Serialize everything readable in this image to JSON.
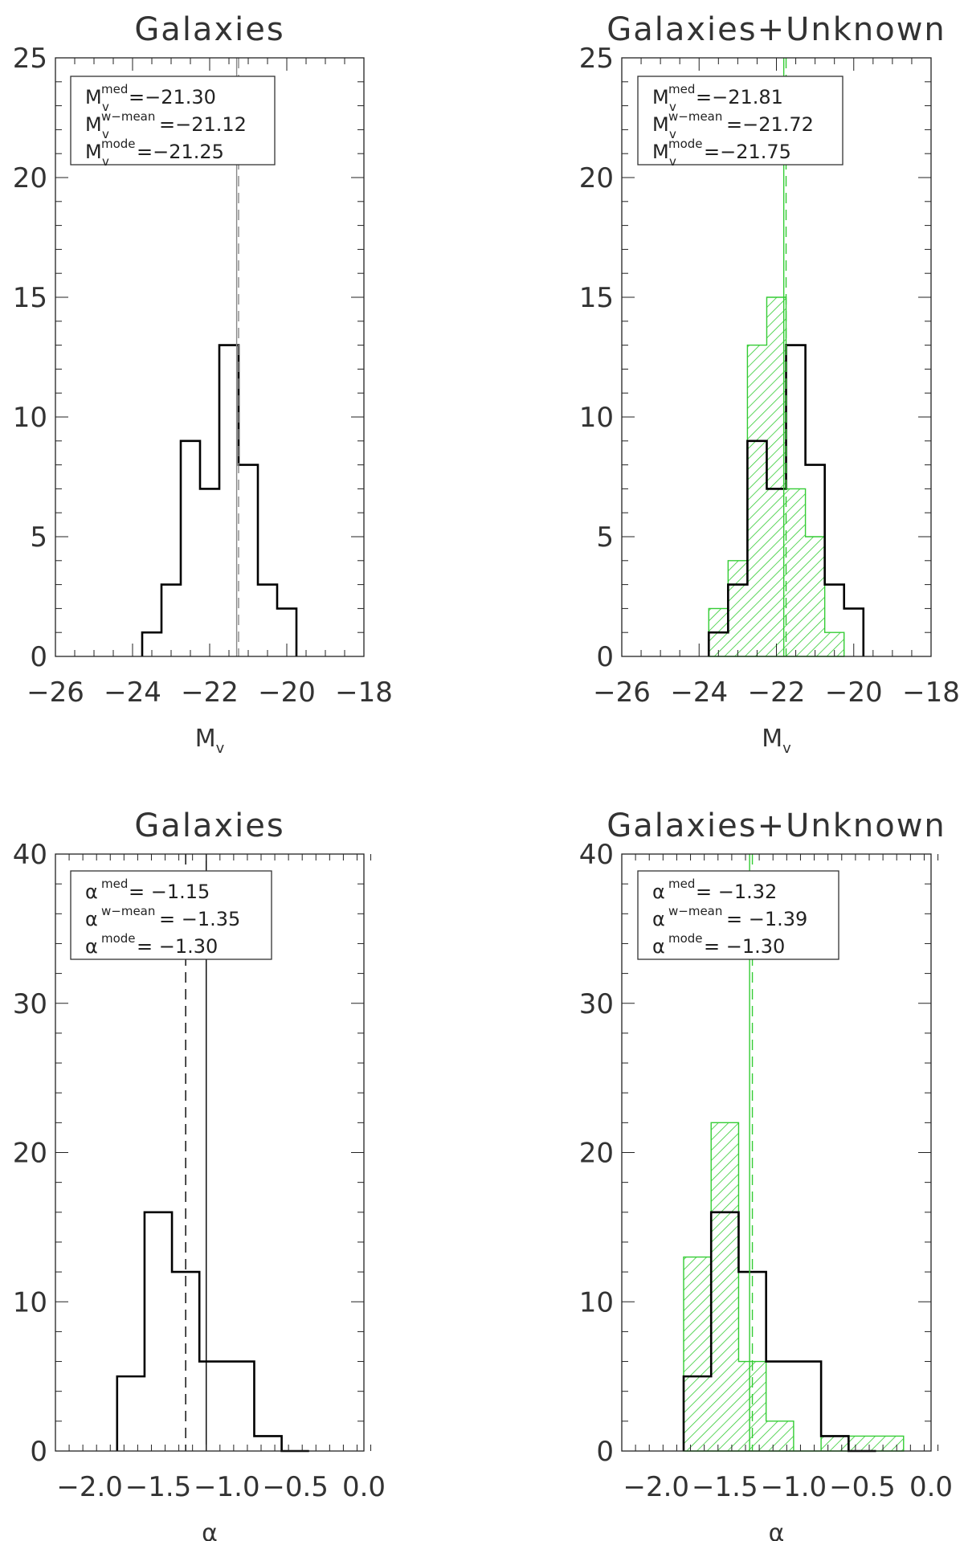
{
  "colors": {
    "black_hist": "#000000",
    "green_hist": "#33cc33",
    "gray_line": "#888888"
  },
  "chart_data": [
    {
      "type": "histogram",
      "title": "Galaxies",
      "xlabel": "M",
      "xlabel_sub": "v",
      "xlim": [
        -26,
        -18
      ],
      "ylim": [
        0,
        25
      ],
      "xticks": [
        -26,
        -24,
        -22,
        -20,
        -18
      ],
      "xtick_labels": [
        "−26",
        "−24",
        "−22",
        "−20",
        "−18"
      ],
      "yticks": [
        0,
        5,
        10,
        15,
        20,
        25
      ],
      "ytick_labels": [
        "0",
        "5",
        "10",
        "15",
        "20",
        "25"
      ],
      "minor_x": 0.5,
      "minor_y": 1,
      "series": [
        {
          "style": "black",
          "edges": [
            -23.75,
            -23.25,
            -22.75,
            -22.25,
            -21.75,
            -21.25,
            -20.75,
            -20.25,
            -19.75
          ],
          "counts": [
            1,
            3,
            9,
            7,
            13,
            8,
            3,
            2
          ]
        }
      ],
      "lines": [
        {
          "x": -21.3,
          "style": "solid",
          "color": "gray"
        },
        {
          "x": -21.25,
          "style": "dashed",
          "color": "gray"
        }
      ],
      "legend_lines": [
        {
          "base": "M",
          "sup": "med",
          "sub": "v",
          "value": "=−21.30"
        },
        {
          "base": "M",
          "sup": "w−mean",
          "sub": "v",
          "value": "=−21.12"
        },
        {
          "base": "M",
          "sup": "mode",
          "sub": "v",
          "value": "=−21.25"
        }
      ]
    },
    {
      "type": "histogram",
      "title": "Galaxies+Unknown",
      "xlabel": "M",
      "xlabel_sub": "v",
      "xlim": [
        -26,
        -18
      ],
      "ylim": [
        0,
        25
      ],
      "xticks": [
        -26,
        -24,
        -22,
        -20,
        -18
      ],
      "xtick_labels": [
        "−26",
        "−24",
        "−22",
        "−20",
        "−18"
      ],
      "yticks": [
        0,
        5,
        10,
        15,
        20,
        25
      ],
      "ytick_labels": [
        "0",
        "5",
        "10",
        "15",
        "20",
        "25"
      ],
      "minor_x": 0.5,
      "minor_y": 1,
      "series": [
        {
          "style": "green",
          "edges": [
            -23.75,
            -23.25,
            -22.75,
            -22.25,
            -21.75,
            -21.25,
            -20.75,
            -20.25
          ],
          "counts": [
            2,
            4,
            13,
            15,
            7,
            5,
            1
          ]
        },
        {
          "style": "black",
          "edges": [
            -23.75,
            -23.25,
            -22.75,
            -22.25,
            -21.75,
            -21.25,
            -20.75,
            -20.25,
            -19.75
          ],
          "counts": [
            1,
            3,
            9,
            7,
            13,
            8,
            3,
            2
          ]
        }
      ],
      "lines": [
        {
          "x": -21.81,
          "style": "solid",
          "color": "green"
        },
        {
          "x": -21.75,
          "style": "dashed",
          "color": "green"
        }
      ],
      "legend_lines": [
        {
          "base": "M",
          "sup": "med",
          "sub": "v",
          "value": "=−21.81"
        },
        {
          "base": "M",
          "sup": "w−mean",
          "sub": "v",
          "value": "=−21.72"
        },
        {
          "base": "M",
          "sup": "mode",
          "sub": "v",
          "value": "=−21.75"
        }
      ]
    },
    {
      "type": "histogram",
      "title": "Galaxies",
      "xlabel": "α",
      "xlabel_sub": "",
      "xlim": [
        -2.25,
        0.0
      ],
      "ylim": [
        0,
        40
      ],
      "xticks": [
        -2.0,
        -1.5,
        -1.0,
        -0.5,
        0.0
      ],
      "xtick_labels": [
        "−2.0",
        "−1.5",
        "−1.0",
        "−0.5",
        "0.0"
      ],
      "yticks": [
        0,
        10,
        20,
        30,
        40
      ],
      "ytick_labels": [
        "0",
        "10",
        "20",
        "30",
        "40"
      ],
      "minor_x": 0.1,
      "minor_y": 2,
      "series": [
        {
          "style": "black",
          "edges": [
            -1.8,
            -1.6,
            -1.4,
            -1.2,
            -1.0,
            -0.8,
            -0.6,
            -0.4
          ],
          "counts": [
            5,
            16,
            12,
            6,
            6,
            1,
            0
          ]
        }
      ],
      "lines": [
        {
          "x": -1.3,
          "style": "dashed",
          "color": "black"
        },
        {
          "x": -1.15,
          "style": "solid",
          "color": "black"
        }
      ],
      "legend_lines": [
        {
          "base": "α",
          "sup": "med",
          "sub": "",
          "value": "= −1.15"
        },
        {
          "base": "α",
          "sup": "w−mean",
          "sub": "",
          "value": "= −1.35"
        },
        {
          "base": "α",
          "sup": "mode",
          "sub": "",
          "value": "= −1.30"
        }
      ]
    },
    {
      "type": "histogram",
      "title": "Galaxies+Unknown",
      "xlabel": "α",
      "xlabel_sub": "",
      "xlim": [
        -2.25,
        0.0
      ],
      "ylim": [
        0,
        40
      ],
      "xticks": [
        -2.0,
        -1.5,
        -1.0,
        -0.5,
        0.0
      ],
      "xtick_labels": [
        "−2.0",
        "−1.5",
        "−1.0",
        "−0.5",
        "0.0"
      ],
      "yticks": [
        0,
        10,
        20,
        30,
        40
      ],
      "ytick_labels": [
        "0",
        "10",
        "20",
        "30",
        "40"
      ],
      "minor_x": 0.1,
      "minor_y": 2,
      "series": [
        {
          "style": "green",
          "edges": [
            -1.8,
            -1.6,
            -1.4,
            -1.2,
            -1.0,
            -0.8,
            -0.6,
            -0.4,
            -0.2
          ],
          "counts": [
            13,
            22,
            6,
            2,
            0,
            1,
            1,
            1
          ]
        },
        {
          "style": "black",
          "edges": [
            -1.8,
            -1.6,
            -1.4,
            -1.2,
            -1.0,
            -0.8,
            -0.6,
            -0.4
          ],
          "counts": [
            5,
            16,
            12,
            6,
            6,
            1,
            0
          ]
        }
      ],
      "lines": [
        {
          "x": -1.32,
          "style": "solid",
          "color": "green"
        },
        {
          "x": -1.3,
          "style": "dashed",
          "color": "green"
        }
      ],
      "legend_lines": [
        {
          "base": "α",
          "sup": "med",
          "sub": "",
          "value": "= −1.32"
        },
        {
          "base": "α",
          "sup": "w−mean",
          "sub": "",
          "value": "= −1.39"
        },
        {
          "base": "α",
          "sup": "mode",
          "sub": "",
          "value": "= −1.30"
        }
      ]
    }
  ]
}
